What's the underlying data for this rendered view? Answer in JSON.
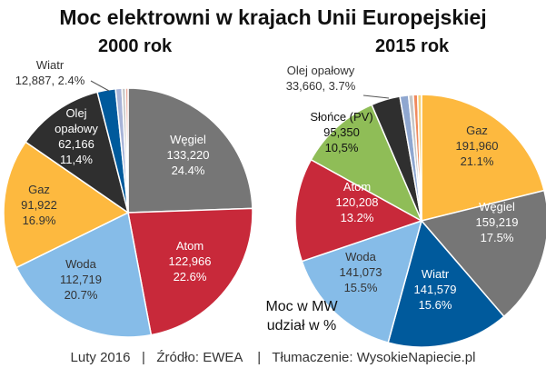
{
  "title": "Moc elektrowni w krajach Unii Europejskiej",
  "unit_note_line1": "Moc w MW",
  "unit_note_line2": "udział w %",
  "footer": "Luty 2016   |   Źródło: EWEA    |   Tłumaczenie: WysokieNapiecie.pl",
  "chart_data": [
    {
      "type": "pie",
      "title": "2000 rok",
      "unit": "MW",
      "slices": [
        {
          "label": "Węgiel",
          "value": 133220,
          "value_text": "133,220",
          "pct_text": "24.4%",
          "color": "#767676",
          "text_color": "#ffffff"
        },
        {
          "label": "Atom",
          "value": 122966,
          "value_text": "122,966",
          "pct_text": "22.6%",
          "color": "#c8293a",
          "text_color": "#ffffff"
        },
        {
          "label": "Woda",
          "value": 112719,
          "value_text": "112,719",
          "pct_text": "20.7%",
          "color": "#86bce8",
          "text_color": "#333333"
        },
        {
          "label": "Gaz",
          "value": 91922,
          "value_text": "91,922",
          "pct_text": "16.9%",
          "color": "#fdb93f",
          "text_color": "#333333"
        },
        {
          "label": "Olej opałowy",
          "value": 62166,
          "value_text": "62,166",
          "pct_text": "11,4%",
          "color": "#2f2f2f",
          "text_color": "#ffffff"
        },
        {
          "label": "Wiatr",
          "value": 12887,
          "value_text": "12,887",
          "pct_text": "2.4%",
          "color": "#005a9c",
          "text_color": "#333333"
        },
        {
          "label": "",
          "value": 4500,
          "color": "#a8b4d8"
        },
        {
          "label": "",
          "value": 2500,
          "color": "#c7c7c7"
        },
        {
          "label": "",
          "value": 1800,
          "color": "#e8a596"
        }
      ]
    },
    {
      "type": "pie",
      "title": "2015 rok",
      "unit": "MW",
      "slices": [
        {
          "label": "Gaz",
          "value": 191960,
          "value_text": "191,960",
          "pct_text": "21.1%",
          "color": "#fdb93f",
          "text_color": "#333333"
        },
        {
          "label": "Węgiel",
          "value": 159219,
          "value_text": "159,219",
          "pct_text": "17.5%",
          "color": "#767676",
          "text_color": "#ffffff"
        },
        {
          "label": "Wiatr",
          "value": 141579,
          "value_text": "141,579",
          "pct_text": "15.6%",
          "color": "#005a9c",
          "text_color": "#ffffff"
        },
        {
          "label": "Woda",
          "value": 141073,
          "value_text": "141,073",
          "pct_text": "15.5%",
          "color": "#86bce8",
          "text_color": "#333333"
        },
        {
          "label": "Atom",
          "value": 120208,
          "value_text": "120,208",
          "pct_text": "13.2%",
          "color": "#c8293a",
          "text_color": "#ffffff"
        },
        {
          "label": "Słońce (PV)",
          "value": 95350,
          "value_text": "95,350",
          "pct_text": "10,5%",
          "color": "#8fbd57",
          "text_color": "#111111"
        },
        {
          "label": "Olej opałowy",
          "value": 33660,
          "value_text": "33,660",
          "pct_text": "3.7%",
          "color": "#2f2f2f",
          "text_color": "#333333"
        },
        {
          "label": "",
          "value": 10000,
          "color": "#8fa7d0"
        },
        {
          "label": "",
          "value": 5500,
          "color": "#c7c7c7"
        },
        {
          "label": "",
          "value": 5000,
          "color": "#f08a5d"
        },
        {
          "label": "",
          "value": 4500,
          "color": "#f6d27a"
        }
      ]
    }
  ]
}
